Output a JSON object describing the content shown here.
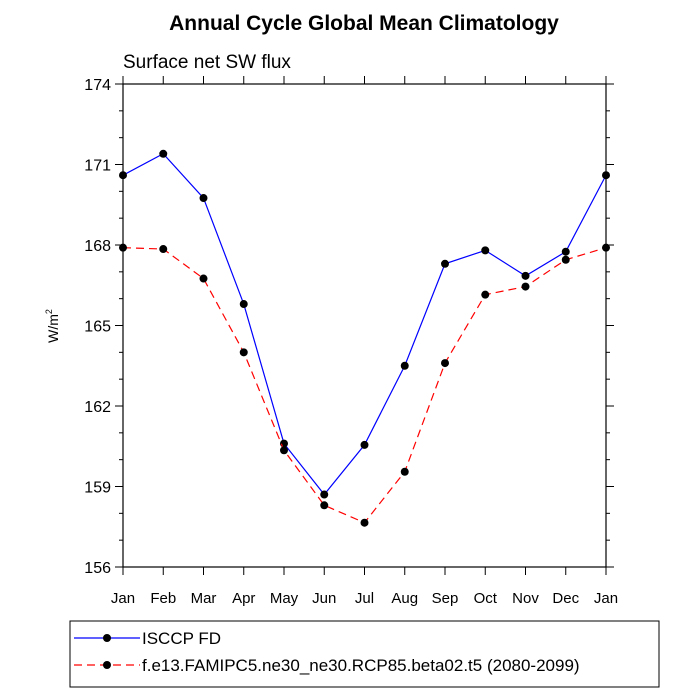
{
  "chart_data": {
    "type": "line",
    "title": "Annual Cycle Global Mean Climatology",
    "subtitle": "Surface net SW flux",
    "ylabel": "W/m",
    "ylabel_sup": "2",
    "categories": [
      "Jan",
      "Feb",
      "Mar",
      "Apr",
      "May",
      "Jun",
      "Jul",
      "Aug",
      "Sep",
      "Oct",
      "Nov",
      "Dec",
      "Jan"
    ],
    "ylim": [
      156,
      174
    ],
    "yticks": [
      "156",
      "159",
      "162",
      "165",
      "168",
      "171",
      "174"
    ],
    "legend_position": "bottom",
    "series": [
      {
        "name": "ISCCP FD",
        "color": "#0000ff",
        "dash": "solid",
        "marker": "circle",
        "values": [
          170.6,
          171.4,
          169.75,
          165.8,
          160.6,
          158.7,
          160.55,
          163.5,
          167.3,
          167.8,
          166.85,
          167.75,
          170.6
        ]
      },
      {
        "name": "f.e13.FAMIPC5.ne30_ne30.RCP85.beta02.t5 (2080-2099)",
        "color": "#ff0000",
        "dash": "dashed",
        "marker": "circle",
        "values": [
          167.9,
          167.85,
          166.75,
          164.0,
          160.35,
          158.3,
          157.65,
          159.55,
          163.6,
          166.15,
          166.45,
          167.45,
          167.9
        ]
      }
    ]
  }
}
